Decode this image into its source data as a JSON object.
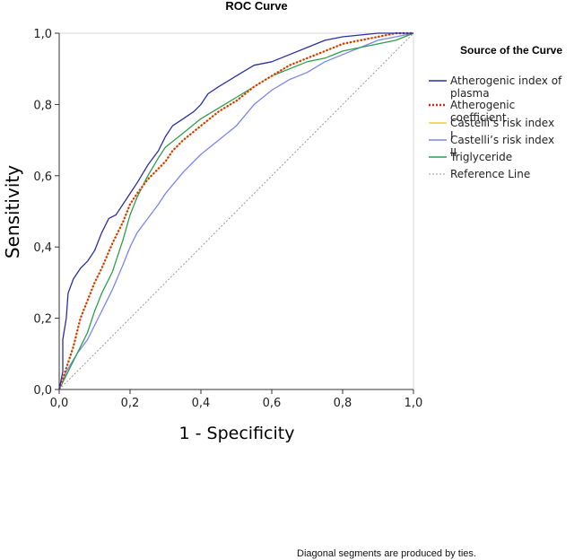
{
  "chart_data": {
    "type": "line",
    "title": "ROC Curve",
    "xlabel": "1 - Specificity",
    "ylabel": "Sensitivity",
    "xlim": [
      0,
      1
    ],
    "ylim": [
      0,
      1
    ],
    "x_ticks": [
      "0,0",
      "0,2",
      "0,4",
      "0,6",
      "0,8",
      "1,0"
    ],
    "y_ticks": [
      "0,0",
      "0,2",
      "0,4",
      "0,6",
      "0,8",
      "1,0"
    ],
    "grid": false,
    "legend_title": "Source of the Curve",
    "legend_position": "right",
    "series": [
      {
        "name": "Atherogenic index of plasma",
        "color": "#2b2fa3",
        "style": "solid",
        "x": [
          0,
          0.01,
          0.01,
          0.02,
          0.025,
          0.04,
          0.06,
          0.08,
          0.1,
          0.12,
          0.14,
          0.16,
          0.18,
          0.2,
          0.22,
          0.25,
          0.28,
          0.3,
          0.32,
          0.35,
          0.38,
          0.4,
          0.42,
          0.45,
          0.5,
          0.55,
          0.6,
          0.65,
          0.7,
          0.75,
          0.8,
          0.85,
          0.9,
          0.95,
          1.0
        ],
        "y": [
          0,
          0.05,
          0.14,
          0.2,
          0.27,
          0.31,
          0.34,
          0.36,
          0.39,
          0.44,
          0.48,
          0.49,
          0.52,
          0.55,
          0.58,
          0.63,
          0.67,
          0.71,
          0.74,
          0.76,
          0.78,
          0.8,
          0.83,
          0.85,
          0.88,
          0.91,
          0.92,
          0.94,
          0.96,
          0.98,
          0.99,
          0.995,
          1.0,
          1.0,
          1.0
        ]
      },
      {
        "name": "Atherogenic coefficient",
        "color": "#cc2a2a",
        "style": "dotted",
        "x": [
          0,
          0.02,
          0.04,
          0.06,
          0.08,
          0.1,
          0.12,
          0.15,
          0.18,
          0.2,
          0.22,
          0.25,
          0.28,
          0.3,
          0.32,
          0.35,
          0.4,
          0.45,
          0.5,
          0.55,
          0.6,
          0.65,
          0.7,
          0.75,
          0.8,
          0.85,
          0.9,
          0.95,
          1.0
        ],
        "y": [
          0,
          0.06,
          0.12,
          0.2,
          0.25,
          0.3,
          0.34,
          0.41,
          0.47,
          0.52,
          0.55,
          0.59,
          0.62,
          0.64,
          0.67,
          0.7,
          0.74,
          0.78,
          0.81,
          0.85,
          0.88,
          0.91,
          0.93,
          0.95,
          0.97,
          0.98,
          0.99,
          1.0,
          1.0
        ]
      },
      {
        "name": "Castelli’s risk index I",
        "color": "#e9d23a",
        "style": "solid",
        "x": [
          0,
          0.02,
          0.04,
          0.06,
          0.08,
          0.1,
          0.12,
          0.15,
          0.18,
          0.2,
          0.22,
          0.25,
          0.28,
          0.3,
          0.32,
          0.35,
          0.4,
          0.45,
          0.5,
          0.55,
          0.6,
          0.65,
          0.7,
          0.75,
          0.8,
          0.85,
          0.9,
          0.95,
          1.0
        ],
        "y": [
          0,
          0.06,
          0.12,
          0.2,
          0.25,
          0.3,
          0.34,
          0.41,
          0.47,
          0.52,
          0.55,
          0.59,
          0.62,
          0.64,
          0.67,
          0.7,
          0.74,
          0.78,
          0.81,
          0.85,
          0.88,
          0.91,
          0.93,
          0.95,
          0.97,
          0.98,
          0.99,
          1.0,
          1.0
        ]
      },
      {
        "name": "Castelli’s risk index II",
        "color": "#7a86ee",
        "style": "solid",
        "x": [
          0,
          0.02,
          0.05,
          0.08,
          0.1,
          0.12,
          0.15,
          0.18,
          0.2,
          0.22,
          0.25,
          0.28,
          0.3,
          0.35,
          0.4,
          0.45,
          0.5,
          0.55,
          0.6,
          0.65,
          0.7,
          0.75,
          0.8,
          0.85,
          0.9,
          0.95,
          1.0
        ],
        "y": [
          0,
          0.05,
          0.1,
          0.14,
          0.18,
          0.22,
          0.28,
          0.35,
          0.4,
          0.44,
          0.48,
          0.52,
          0.55,
          0.61,
          0.66,
          0.7,
          0.74,
          0.8,
          0.84,
          0.87,
          0.89,
          0.92,
          0.94,
          0.96,
          0.98,
          0.99,
          1.0
        ]
      },
      {
        "name": "Triglyceride",
        "color": "#2e9e4d",
        "style": "solid",
        "x": [
          0,
          0.02,
          0.05,
          0.08,
          0.1,
          0.12,
          0.15,
          0.18,
          0.2,
          0.22,
          0.25,
          0.28,
          0.3,
          0.35,
          0.4,
          0.45,
          0.5,
          0.55,
          0.6,
          0.65,
          0.7,
          0.75,
          0.8,
          0.85,
          0.9,
          0.95,
          1.0
        ],
        "y": [
          0,
          0.04,
          0.1,
          0.16,
          0.22,
          0.27,
          0.33,
          0.42,
          0.49,
          0.54,
          0.6,
          0.65,
          0.68,
          0.72,
          0.76,
          0.79,
          0.82,
          0.85,
          0.88,
          0.9,
          0.92,
          0.93,
          0.95,
          0.96,
          0.97,
          0.98,
          1.0
        ]
      },
      {
        "name": "Reference Line",
        "color": "#9a9a9a",
        "style": "dashed",
        "x": [
          0,
          1
        ],
        "y": [
          0,
          1
        ]
      }
    ]
  },
  "footnote": "Diagonal segments are produced by ties."
}
